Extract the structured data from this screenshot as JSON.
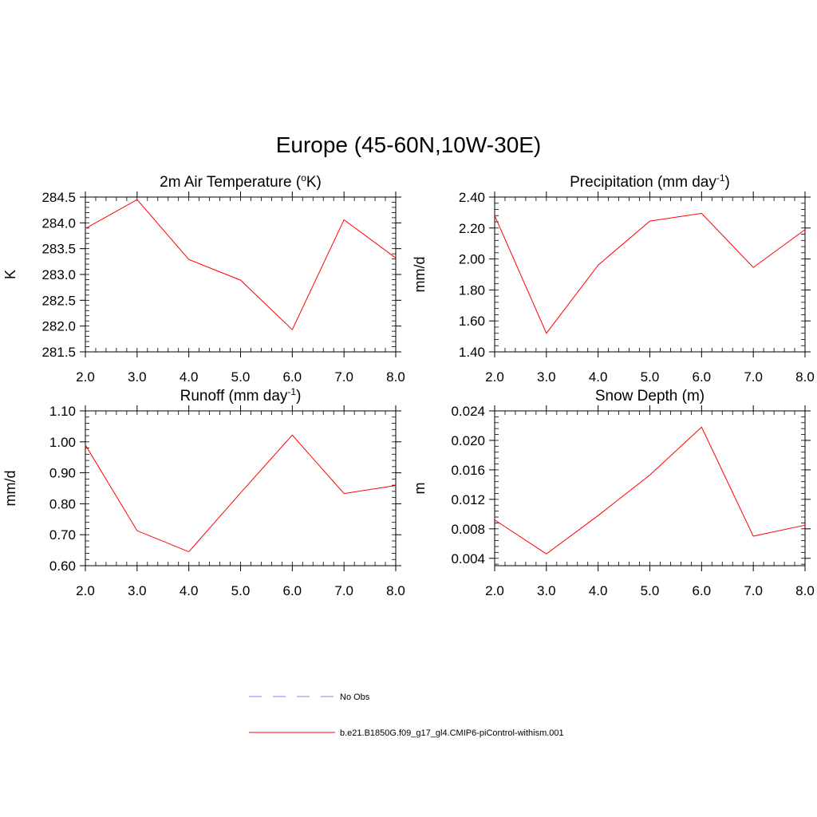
{
  "figure": {
    "title": "Europe (45-60N,10W-30E)"
  },
  "chart_data": [
    {
      "type": "line",
      "title": "2m Air Temperature (",
      "title_sup": "o",
      "title_end": "K)",
      "xlabel": "",
      "ylabel": "K",
      "xlim": [
        2,
        8
      ],
      "ylim": [
        281.5,
        284.5
      ],
      "xticks": [
        "2.0",
        "3.0",
        "4.0",
        "5.0",
        "6.0",
        "7.0",
        "8.0"
      ],
      "yticks": [
        "281.5",
        "282.0",
        "282.5",
        "283.0",
        "283.5",
        "284.0",
        "284.5"
      ],
      "ytick_values": [
        281.5,
        282.0,
        282.5,
        283.0,
        283.5,
        284.0,
        284.5
      ],
      "x": [
        2,
        3,
        4,
        5,
        6,
        7,
        8
      ],
      "series": [
        {
          "name": "b.e21.B1850G.f09_g17_gl4.CMIP6-piControl-withism.001",
          "color": "#ff0000",
          "values": [
            283.89,
            284.45,
            283.29,
            282.89,
            281.93,
            284.06,
            283.32
          ]
        }
      ]
    },
    {
      "type": "line",
      "title": "Precipitation (mm day",
      "title_sup": "-1",
      "title_end": ")",
      "xlabel": "",
      "ylabel": "mm/d",
      "xlim": [
        2,
        8
      ],
      "ylim": [
        1.4,
        2.4
      ],
      "xticks": [
        "2.0",
        "3.0",
        "4.0",
        "5.0",
        "6.0",
        "7.0",
        "8.0"
      ],
      "yticks": [
        "1.40",
        "1.60",
        "1.80",
        "2.00",
        "2.20",
        "2.40"
      ],
      "ytick_values": [
        1.4,
        1.6,
        1.8,
        2.0,
        2.2,
        2.4
      ],
      "x": [
        2,
        3,
        4,
        5,
        6,
        7,
        8
      ],
      "series": [
        {
          "name": "b.e21.B1850G.f09_g17_gl4.CMIP6-piControl-withism.001",
          "color": "#ff0000",
          "values": [
            2.28,
            1.52,
            1.96,
            2.245,
            2.295,
            1.945,
            2.19
          ]
        }
      ]
    },
    {
      "type": "line",
      "title": "Runoff (mm day",
      "title_sup": "-1",
      "title_end": ")",
      "xlabel": "",
      "ylabel": "mm/d",
      "xlim": [
        2,
        8
      ],
      "ylim": [
        0.6,
        1.1
      ],
      "xticks": [
        "2.0",
        "3.0",
        "4.0",
        "5.0",
        "6.0",
        "7.0",
        "8.0"
      ],
      "yticks": [
        "0.60",
        "0.70",
        "0.80",
        "0.90",
        "1.00",
        "1.10"
      ],
      "ytick_values": [
        0.6,
        0.7,
        0.8,
        0.9,
        1.0,
        1.1
      ],
      "x": [
        2,
        3,
        4,
        5,
        6,
        7,
        8
      ],
      "series": [
        {
          "name": "b.e21.B1850G.f09_g17_gl4.CMIP6-piControl-withism.001",
          "color": "#ff0000",
          "values": [
            0.99,
            0.713,
            0.645,
            0.835,
            1.022,
            0.833,
            0.859
          ]
        }
      ]
    },
    {
      "type": "line",
      "title": "Snow Depth (m)",
      "title_sup": "",
      "title_end": "",
      "xlabel": "",
      "ylabel": "m",
      "xlim": [
        2,
        8
      ],
      "ylim": [
        0.003,
        0.024
      ],
      "xticks": [
        "2.0",
        "3.0",
        "4.0",
        "5.0",
        "6.0",
        "7.0",
        "8.0"
      ],
      "yticks": [
        "0.004",
        "0.008",
        "0.012",
        "0.016",
        "0.020",
        "0.024"
      ],
      "ytick_values": [
        0.004,
        0.008,
        0.012,
        0.016,
        0.02,
        0.024
      ],
      "x": [
        2,
        3,
        4,
        5,
        6,
        7,
        8
      ],
      "series": [
        {
          "name": "b.e21.B1850G.f09_g17_gl4.CMIP6-piControl-withism.001",
          "color": "#ff0000",
          "values": [
            0.0092,
            0.0046,
            0.0098,
            0.0153,
            0.0218,
            0.007,
            0.0085
          ]
        }
      ]
    }
  ],
  "legend": {
    "position": "bottom-center",
    "items": [
      {
        "label": "No Obs",
        "color": "#9999ff",
        "style": "dashed"
      },
      {
        "label": "b.e21.B1850G.f09_g17_gl4.CMIP6-piControl-withism.001",
        "color": "#ff0000",
        "style": "solid"
      }
    ]
  }
}
